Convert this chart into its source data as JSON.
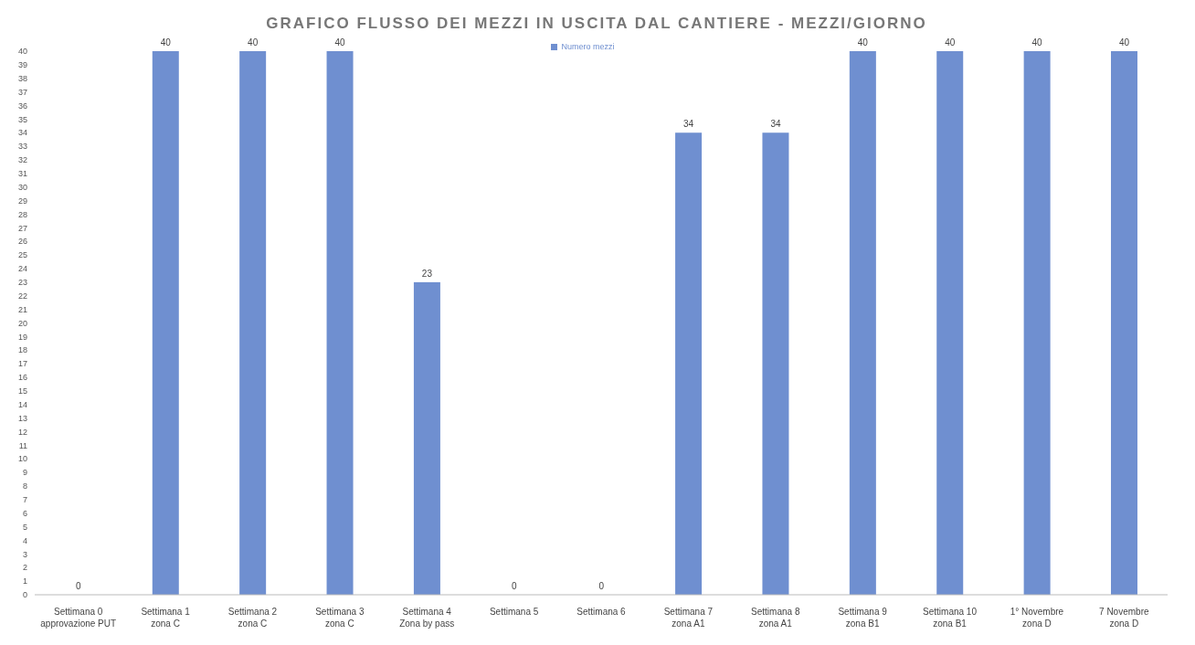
{
  "chart_data": {
    "type": "bar",
    "title": "GRAFICO FLUSSO DEI MEZZI IN USCITA DAL CANTIERE -   MEZZI/GIORNO",
    "categories": [
      "Settimana 0\napprovazione PUT",
      "Settimana 1\nzona C",
      "Settimana 2\nzona C",
      "Settimana 3\nzona C",
      "Settimana 4\nZona by pass",
      "Settimana 5",
      "Settimana 6",
      "Settimana 7\nzona A1",
      "Settimana 8\nzona A1",
      "Settimana 9\nzona B1",
      "Settimana 10\nzona B1",
      "1° Novembre\nzona D",
      "7 Novembre\nzona D"
    ],
    "series": [
      {
        "name": "Numero mezzi",
        "color": "#6f8fd0",
        "values": [
          0,
          40,
          40,
          40,
          23,
          0,
          0,
          34,
          34,
          40,
          40,
          40,
          40
        ]
      }
    ],
    "ylim": [
      0,
      40
    ],
    "yticks": [
      0,
      1,
      2,
      3,
      4,
      5,
      6,
      7,
      8,
      9,
      10,
      11,
      12,
      13,
      14,
      15,
      16,
      17,
      18,
      19,
      20,
      21,
      22,
      23,
      24,
      25,
      26,
      27,
      28,
      29,
      30,
      31,
      32,
      33,
      34,
      35,
      36,
      37,
      38,
      39,
      40
    ],
    "grid": false,
    "legend": "top",
    "data_labels": true
  }
}
